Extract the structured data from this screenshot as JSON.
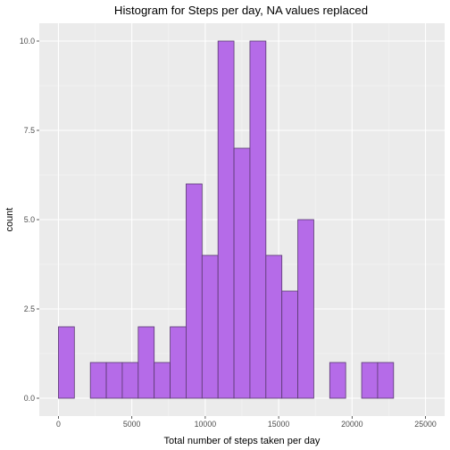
{
  "chart_data": {
    "type": "bar",
    "title": "Histogram for Steps per day, NA values replaced",
    "xlabel": "Total number of steps taken per day",
    "ylabel": "count",
    "x_bin_start": [
      0,
      1087,
      2174,
      3261,
      4348,
      5435,
      6522,
      7609,
      8696,
      9783,
      10870,
      11957,
      13044,
      14131,
      15218,
      16305,
      17392,
      18479,
      19566,
      20653,
      21740,
      22827,
      23914
    ],
    "bin_width": 1087,
    "values": [
      2,
      0,
      1,
      1,
      1,
      2,
      1,
      2,
      6,
      4,
      10,
      7,
      10,
      4,
      3,
      5,
      0,
      1,
      0,
      1,
      1,
      0,
      0
    ],
    "xlim": [
      -1304,
      26305
    ],
    "ylim": [
      -0.5,
      10.5
    ],
    "xticks": [
      "0",
      "5000",
      "10000",
      "15000",
      "20000",
      "25000"
    ],
    "yticks": [
      "0.0",
      "2.5",
      "5.0",
      "7.5",
      "10.0"
    ],
    "bar_fill": "#b56be8",
    "bar_stroke": "#5a3a70",
    "panel_background": "#ebebeb",
    "grid": true
  }
}
